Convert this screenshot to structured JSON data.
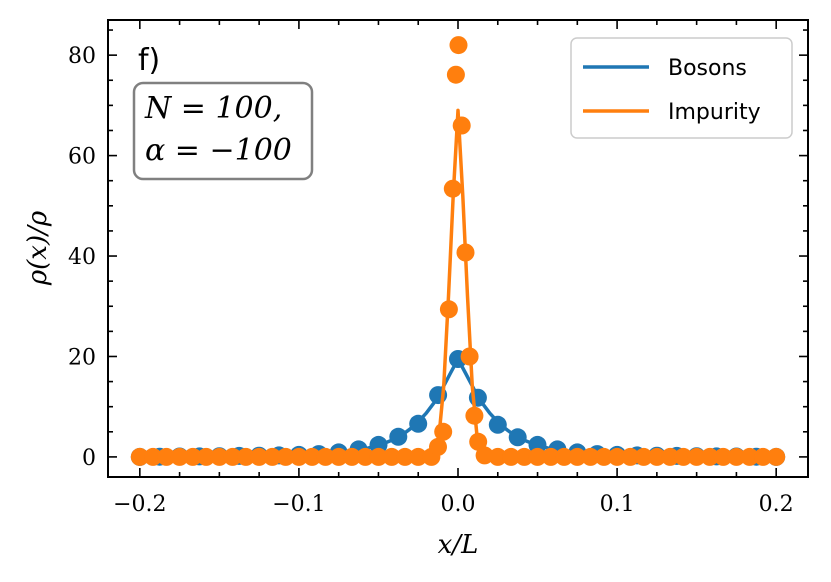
{
  "chart_data": {
    "type": "scatter",
    "panel_label": "f)",
    "annotation": [
      "N = 100,",
      "α = −100"
    ],
    "xlabel": "x/L",
    "ylabel": "ρ(x)/ρ",
    "xlim": [
      -0.22,
      0.22
    ],
    "ylim": [
      -4,
      87
    ],
    "xticks": [
      -0.2,
      -0.1,
      0.0,
      0.1,
      0.2
    ],
    "xtick_labels": [
      "−0.2",
      "−0.1",
      "0.0",
      "0.1",
      "0.2"
    ],
    "yticks": [
      0,
      20,
      40,
      60,
      80
    ],
    "ytick_labels": [
      "0",
      "20",
      "40",
      "60",
      "80"
    ],
    "legend": {
      "position": "top-right",
      "entries": [
        "Bosons",
        "Impurity"
      ]
    },
    "series": [
      {
        "name": "Bosons",
        "color": "#1f77b4",
        "line": {
          "x": [
            -0.2,
            -0.18,
            -0.16,
            -0.14,
            -0.12,
            -0.1,
            -0.08,
            -0.07,
            -0.06,
            -0.05,
            -0.04,
            -0.035,
            -0.03,
            -0.025,
            -0.02,
            -0.015,
            -0.01,
            -0.005,
            0.0,
            0.005,
            0.01,
            0.015,
            0.02,
            0.025,
            0.03,
            0.035,
            0.04,
            0.05,
            0.06,
            0.07,
            0.08,
            0.1,
            0.12,
            0.14,
            0.16,
            0.18,
            0.2
          ],
          "y": [
            0.0,
            0.05,
            0.1,
            0.15,
            0.25,
            0.4,
            0.7,
            1.0,
            1.5,
            2.3,
            3.5,
            4.4,
            5.6,
            7.0,
            8.7,
            10.8,
            13.5,
            16.5,
            19.5,
            16.5,
            13.5,
            10.8,
            8.7,
            7.0,
            5.6,
            4.4,
            3.5,
            2.3,
            1.5,
            1.0,
            0.7,
            0.4,
            0.25,
            0.15,
            0.1,
            0.05,
            0.0
          ]
        },
        "points": {
          "x": [
            -0.2,
            -0.1875,
            -0.175,
            -0.1625,
            -0.15,
            -0.1375,
            -0.125,
            -0.1125,
            -0.1,
            -0.0875,
            -0.075,
            -0.0625,
            -0.05,
            -0.0375,
            -0.025,
            -0.0125,
            0.0,
            0.0125,
            0.025,
            0.0375,
            0.05,
            0.0625,
            0.075,
            0.0875,
            0.1,
            0.1125,
            0.125,
            0.1375,
            0.15,
            0.1625,
            0.175,
            0.1875,
            0.2
          ],
          "y": [
            0.0,
            0.05,
            0.08,
            0.1,
            0.15,
            0.2,
            0.25,
            0.3,
            0.4,
            0.55,
            0.9,
            1.5,
            2.4,
            4.0,
            6.6,
            12.3,
            19.5,
            11.8,
            6.4,
            3.9,
            2.4,
            1.5,
            0.9,
            0.55,
            0.4,
            0.3,
            0.25,
            0.2,
            0.15,
            0.1,
            0.08,
            0.05,
            0.0
          ]
        }
      },
      {
        "name": "Impurity",
        "color": "#ff7f0e",
        "line": {
          "x": [
            -0.2,
            -0.15,
            -0.1,
            -0.05,
            -0.03,
            -0.02,
            -0.015,
            -0.012,
            -0.009,
            -0.006,
            -0.003,
            0.0,
            0.003,
            0.006,
            0.009,
            0.012,
            0.015,
            0.02,
            0.03,
            0.05,
            0.1,
            0.15,
            0.2
          ],
          "y": [
            0.0,
            0.0,
            0.0,
            0.0,
            0.05,
            0.3,
            1.2,
            4.0,
            14.0,
            32.0,
            52.0,
            69.0,
            52.0,
            32.0,
            14.0,
            4.0,
            1.2,
            0.3,
            0.05,
            0.0,
            0.0,
            0.0,
            0.0
          ]
        },
        "points": {
          "x": [
            -0.2,
            -0.1917,
            -0.1833,
            -0.175,
            -0.1667,
            -0.1583,
            -0.15,
            -0.1417,
            -0.1333,
            -0.125,
            -0.1167,
            -0.1083,
            -0.1,
            -0.0917,
            -0.0833,
            -0.075,
            -0.0667,
            -0.0583,
            -0.05,
            -0.0417,
            -0.0333,
            -0.025,
            -0.0167,
            -0.0126,
            -0.0093,
            -0.0057,
            -0.0033,
            -0.0013,
            0.0003,
            0.0023,
            0.0047,
            0.0073,
            0.0103,
            0.0127,
            0.0167,
            0.025,
            0.0333,
            0.0417,
            0.05,
            0.0583,
            0.0667,
            0.075,
            0.0833,
            0.0917,
            0.1,
            0.1083,
            0.1167,
            0.125,
            0.1333,
            0.1417,
            0.15,
            0.1583,
            0.1667,
            0.175,
            0.1833,
            0.1917,
            0.2
          ],
          "y": [
            0,
            0,
            0,
            0,
            0,
            0,
            0,
            0,
            0,
            0,
            0,
            0,
            0,
            0,
            0,
            0,
            0,
            0,
            0,
            0,
            0,
            0,
            0,
            2.0,
            5.0,
            29.4,
            53.4,
            76.1,
            82.0,
            66.0,
            40.7,
            20.0,
            8.2,
            3.0,
            0.3,
            0,
            0,
            0,
            0,
            0,
            0,
            0,
            0,
            0,
            0,
            0,
            0,
            0,
            0,
            0,
            0,
            0,
            0,
            0,
            0,
            0,
            0
          ]
        }
      }
    ]
  }
}
